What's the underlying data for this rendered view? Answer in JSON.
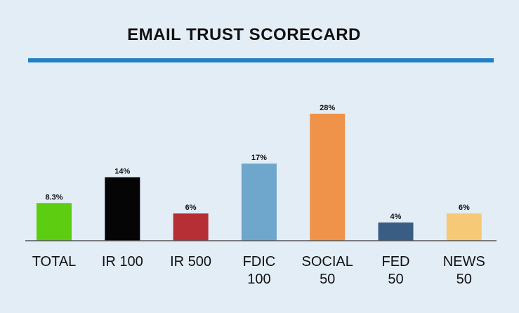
{
  "chart_data": {
    "type": "bar",
    "title": "EMAIL TRUST SCORECARD",
    "categories": [
      [
        "TOTAL"
      ],
      [
        "IR 100"
      ],
      [
        "IR 500"
      ],
      [
        "FDIC",
        "100"
      ],
      [
        "SOCIAL",
        "50"
      ],
      [
        "FED",
        "50"
      ],
      [
        "NEWS",
        "50"
      ]
    ],
    "values": [
      8.3,
      14,
      6,
      17,
      28,
      4,
      6
    ],
    "value_labels": [
      "8.3%",
      "14%",
      "6%",
      "17%",
      "28%",
      "4%",
      "6%"
    ],
    "bar_colors": [
      "#5ccd11",
      "#050505",
      "#b52f34",
      "#6ea6cc",
      "#ef934a",
      "#3a5d83",
      "#f5c976"
    ],
    "ylim": [
      0,
      28
    ],
    "grid": false,
    "legend": "none"
  },
  "colors": {
    "background": "#e3edf6",
    "title_rule": "#1f80c6",
    "axis": "#555555"
  }
}
